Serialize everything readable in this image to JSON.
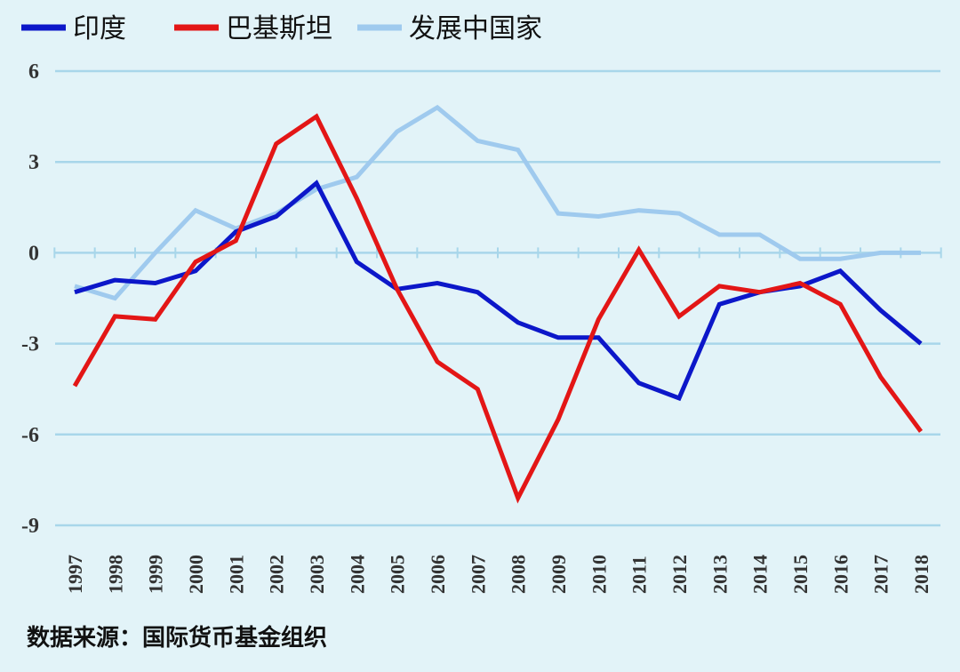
{
  "chart_data": {
    "type": "line",
    "title": "",
    "xlabel": "",
    "ylabel": "",
    "x": [
      "1997",
      "1998",
      "1999",
      "2000",
      "2001",
      "2002",
      "2003",
      "2004",
      "2005",
      "2006",
      "2007",
      "2008",
      "2009",
      "2010",
      "2011",
      "2012",
      "2013",
      "2014",
      "2015",
      "2016",
      "2017",
      "2018"
    ],
    "ylim": [
      -9,
      6
    ],
    "yticks": [
      6,
      3,
      0,
      -3,
      -6,
      -9
    ],
    "grid": true,
    "legend_position": "top-left",
    "series": [
      {
        "name": "印度",
        "color": "#0c17c9",
        "values": [
          -1.3,
          -0.9,
          -1.0,
          -0.6,
          0.7,
          1.2,
          2.3,
          -0.3,
          -1.2,
          -1.0,
          -1.3,
          -2.3,
          -2.8,
          -2.8,
          -4.3,
          -4.8,
          -1.7,
          -1.3,
          -1.1,
          -0.6,
          -1.9,
          -3.0
        ]
      },
      {
        "name": "巴基斯坦",
        "color": "#e31616",
        "values": [
          -4.4,
          -2.1,
          -2.2,
          -0.3,
          0.4,
          3.6,
          4.5,
          1.8,
          -1.2,
          -3.6,
          -4.5,
          -8.1,
          -5.5,
          -2.2,
          0.1,
          -2.1,
          -1.1,
          -1.3,
          -1.0,
          -1.7,
          -4.1,
          -5.9
        ]
      },
      {
        "name": "发展中国家",
        "color": "#9fcaee",
        "values": [
          -1.1,
          -1.5,
          0.0,
          1.4,
          0.8,
          1.3,
          2.1,
          2.5,
          4.0,
          4.8,
          3.7,
          3.4,
          1.3,
          1.2,
          1.4,
          1.3,
          0.6,
          0.6,
          -0.2,
          -0.2,
          0.0,
          0.0
        ]
      }
    ],
    "source": "数据来源：国际货币基金组织"
  }
}
